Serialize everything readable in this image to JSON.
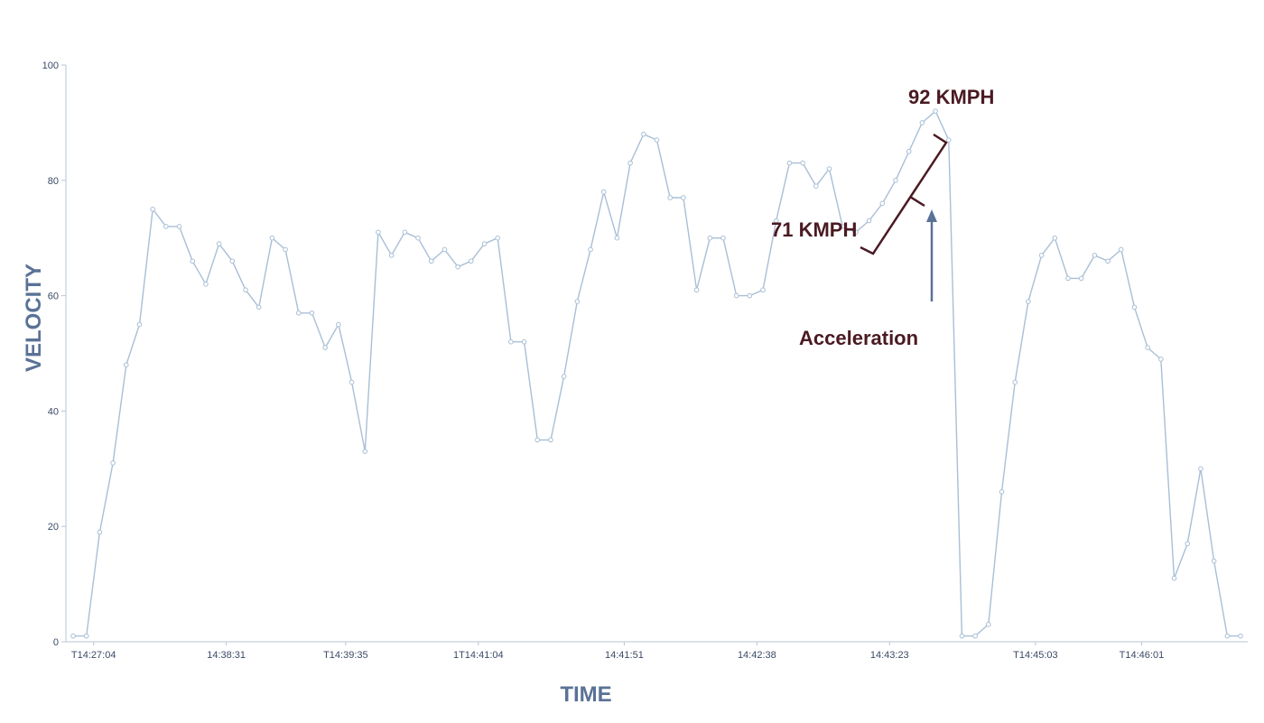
{
  "chart_data": {
    "type": "line",
    "xlabel": "TIME",
    "ylabel": "VELOCITY",
    "ylim": [
      0,
      100
    ],
    "y_ticks": [
      0,
      20,
      40,
      60,
      80,
      100
    ],
    "x_tick_labels": [
      "T14:27:04",
      "14:38:31",
      "T14:39:35",
      "1T14:41:04",
      "14:41:51",
      "14:42:38",
      "14:43:23",
      "T14:45:03",
      "T14:46:01"
    ],
    "x_tick_indices": [
      1,
      11,
      20,
      30,
      41,
      51,
      61,
      72,
      80
    ],
    "grid": false,
    "series": [
      {
        "color": "#a9bfd6",
        "values": [
          1,
          1,
          19,
          31,
          48,
          55,
          75,
          72,
          72,
          66,
          62,
          69,
          66,
          61,
          58,
          70,
          68,
          57,
          57,
          51,
          55,
          45,
          33,
          71,
          67,
          71,
          70,
          66,
          68,
          65,
          66,
          69,
          70,
          52,
          52,
          35,
          35,
          46,
          59,
          68,
          78,
          70,
          83,
          88,
          87,
          77,
          77,
          61,
          70,
          70,
          60,
          60,
          61,
          73,
          83,
          83,
          79,
          82,
          72,
          71,
          73,
          76,
          80,
          85,
          90,
          92,
          87,
          1,
          1,
          3,
          26,
          45,
          59,
          67,
          70,
          63,
          63,
          67,
          66,
          68,
          58,
          51,
          49,
          11,
          17,
          30,
          14,
          1,
          1
        ]
      }
    ],
    "annotations": {
      "peak_label": "92 KMPH",
      "start_label": "71 KMPH",
      "arrow_label": "Acceleration"
    },
    "annotation_color": "#4a1a22",
    "arrow_color": "#5a7296"
  }
}
